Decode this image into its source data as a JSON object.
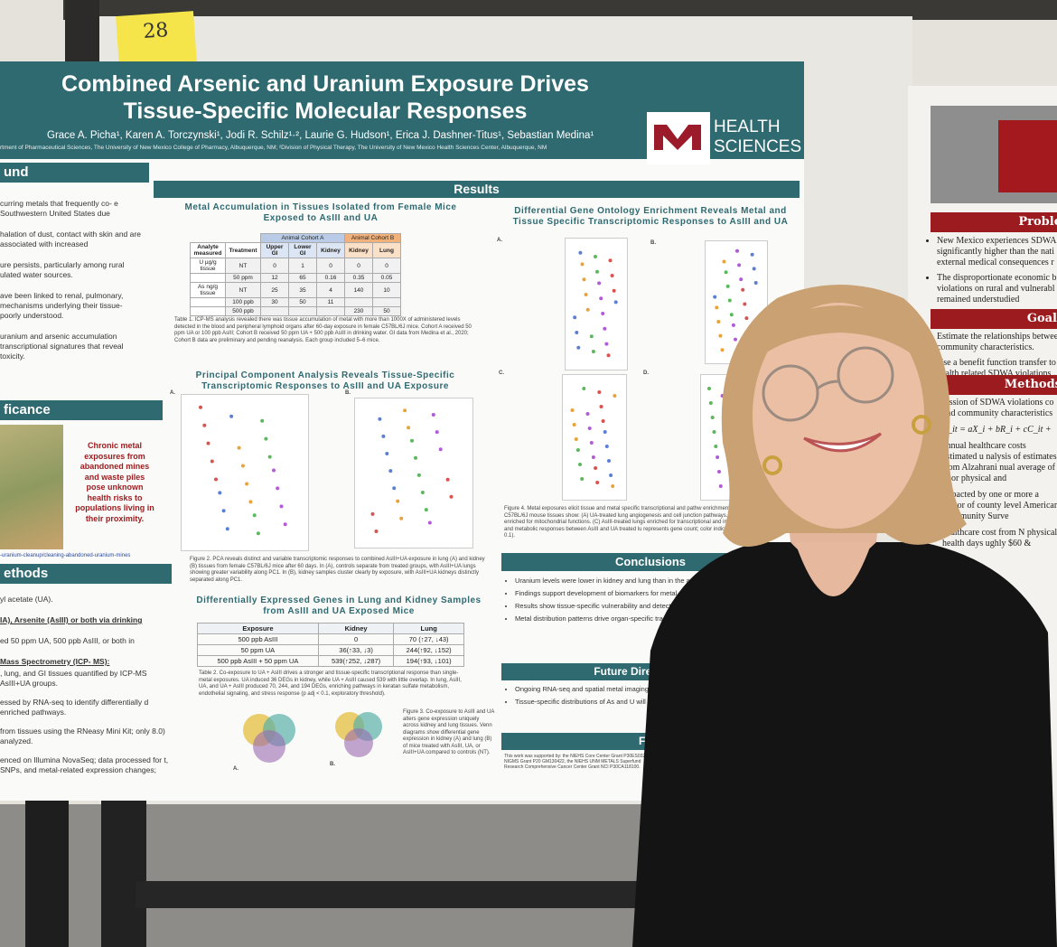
{
  "sticky_note": "28",
  "poster": {
    "title_lines": [
      "Combined Arsenic and Uranium Exposure Drives",
      "Tissue-Specific Molecular Responses"
    ],
    "authors": "Grace A. Picha¹, Karen A. Torczynski¹, Jodi R. Schilz¹·², Laurie G. Hudson¹, Erica J. Dashner-Titus¹, Sebastian Medina¹",
    "affiliation": "rtment of Pharmaceutical Sciences, The University of New Mexico College of Pharmacy, Albuquerque, NM; ²Division of Physical Therapy, The University of New Mexico Health Sciences Center, Albuquerque, NM",
    "logo_lines": [
      "HEALTH",
      "SCIENCES"
    ],
    "background": {
      "header": "und",
      "paragraphs": [
        "curring metals that frequently co- e Southwestern United States due",
        "halation of dust, contact with skin and are associated with increased",
        "ure persists, particularly among rural ulated water sources.",
        "ave been linked to renal, pulmonary, mechanisms underlying their tissue- poorly understood.",
        "uranium and arsenic accumulation transcriptional signatures that reveal toxicity."
      ]
    },
    "significance": {
      "header": "ficance",
      "callout": "Chronic metal exposures from abandoned mines and waste piles pose unknown health risks to populations living in their proximity.",
      "link": "-uranium-cleanup/cleaning-abandoned-uranium-mines"
    },
    "methods": {
      "header": "ethods",
      "paragraphs": [
        "yl acetate (UA).",
        "IA), Arsenite (AsIII) or both via drinking",
        "ed 50 ppm UA, 500 ppb AsIII, or both in",
        "Mass Spectrometry (ICP- MS):",
        ", lung, and GI tissues quantified by ICP-MS AsIII+UA groups.",
        "essed by RNA-seq to identify differentially d enriched pathways.",
        "from tissues using the RNeasy Mini Kit; only 8.0) analyzed.",
        "enced on Illumina NovaSeq; data processed for t, SNPs, and metal-related expression changes;"
      ]
    },
    "results_header": "Results",
    "fig1": {
      "title": "Metal Accumulation in Tissues Isolated from Female Mice Exposed to AsIII and UA",
      "cohorts": [
        "Animal Cohort A",
        "Animal Cohort B"
      ],
      "columns": [
        "Analyte measured",
        "Treatment",
        "Upper GI",
        "Lower GI",
        "Kidney",
        "Kidney",
        "Lung"
      ],
      "rows": [
        [
          "U µg/g tissue",
          "NT",
          "0",
          "1",
          "0",
          "0",
          "0"
        ],
        [
          null,
          "50 ppm",
          "12",
          "65",
          "0.16",
          "0.35",
          "0.05"
        ],
        [
          "As ng/g tissue",
          "NT",
          "25",
          "35",
          "4",
          "140",
          "10"
        ],
        [
          null,
          "100 ppb",
          "30",
          "50",
          "11",
          null,
          null
        ],
        [
          null,
          "500 ppb",
          null,
          null,
          null,
          "230",
          "50"
        ]
      ],
      "caption": "Table 1. ICP-MS analysis revealed there was tissue accumulation of metal with more than 1000X of administered levels detected in the blood and peripheral lymphoid organs after 60-day exposure in female C57BL/6J mice. Cohort A received 50 ppm UA or 100 ppb AsIII; Cohort B received 50 ppm UA + 500 ppb AsIII in drinking water. GI data from Medina et al., 2020; Cohort B data are preliminary and pending reanalysis. Each group included 5–6 mice."
    },
    "fig2": {
      "title": "Principal Component Analysis Reveals Tissue-Specific Transcriptomic Responses to AsIII and UA Exposure",
      "panels": [
        "A.",
        "B."
      ],
      "caption": "Figure 2. PCA reveals distinct and variable transcriptomic responses to combined AsIII+UA exposure in lung (A) and kidney (B) tissues from female C57BL/6J mice after 60 days. In (A), controls separate from treated groups, with AsIII+UA lungs showing greater variability along PC1. In (B), kidney samples cluster clearly by exposure, with AsIII+UA kidneys distinctly separated along PC1."
    },
    "fig3": {
      "title": "Differentially Expressed Genes in Lung and Kidney Samples from AsIII and UA Exposed Mice",
      "columns": [
        "Exposure",
        "Kidney",
        "Lung"
      ],
      "rows": [
        [
          "500 ppb AsIII",
          "0",
          "70 (↑27, ↓43)"
        ],
        [
          "50 ppm UA",
          "36(↑33, ↓3)",
          "244(↑92, ↓152)"
        ],
        [
          "500 ppb AsIII + 50 ppm UA",
          "539(↑252, ↓287)",
          "194(↑93, ↓101)"
        ]
      ],
      "caption": "Table 2. Co-exposure to UA + AsIII drives a stronger and tissue-specific transcriptional response than single-metal exposures. UA induced 36 DEGs in kidney, while UA + AsIII caused 539 with little overlap. In lung, AsIII, UA, and UA + AsIII produced 70, 244, and 194 DEGs, enriching pathways in keratan sulfate metabolism, endothelial signaling, and stress response (p adj < 0.1, exploratory threshold).",
      "venn_caption": "Figure 3. Co-exposure to AsIII and UA alters gene expression uniquely across kidney and lung tissues. Venn diagrams show differential gene expression in kidney (A) and lung (B) of mice treated with AsIII, UA, or AsIII+UA compared to controls (NT).",
      "panels": [
        "A.",
        "B."
      ]
    },
    "fig4": {
      "title": "Differential Gene Ontology Enrichment Reveals Metal and Tissue Specific Transcriptomic Responses to AsIII and UA",
      "panels": [
        "A.",
        "B.",
        "C.",
        "D."
      ],
      "caption": "Figure 4. Metal exposures elicit tissue and metal specific transcriptional and pathw enrichment analyses of female C57BL/6J mouse tissues show: (A) UA-treated lung angiogenesis and cell junction pathways. (B) UA-treated kidneys enriched for mitochondrial functions. (C) AsIII-treated lungs enriched for transcriptional and imm (D) distinct transcriptional and metabolic responses between AsIII and UA treated lu represents gene count; color indicates significance (p adj. < 0.1)."
    },
    "conclusions": {
      "header": "Conclusions",
      "bullets": [
        "Uranium levels were lower in kidney and lung than in the accumulated primarily in the kidney.",
        "Findings support development of biomarkers for metal an",
        "Results show tissue-specific vulnerability and detectabl RNAseq.",
        "Metal distribution patterns drive organ-specific tra sensitivity under co-exposure."
      ]
    },
    "future": {
      "header": "Future Direction",
      "bullets": [
        "Ongoing RNA-seq and spatial metal imaging wi drivers of co-exposure toxicity.",
        "Tissue-specific distributions of As and U will be MS, ICP-MS, and HPLC-ICP-MS."
      ]
    },
    "funding": {
      "header": "Fundin",
      "text": "This work was supported by: the NIEHS Core Center Grant P30ES032755, NIGMS Grant P20 GM130422, the NIEHS UNM METALS Superfund Research Comprehensive Cancer Center Grant NCI P30CA118100."
    }
  },
  "side_poster": {
    "headers": [
      "Proble",
      "Goal",
      "Methods"
    ],
    "problem_bullets": [
      "New Mexico experiences SDWA significantly higher than the nati external medical consequences r",
      "The disproportionate economic b violations on rural and vulnerabl has remained understudied"
    ],
    "goal_bullets": [
      "Estimate the relationships betwee community characteristics.",
      "Use a benefit function transfer to health related SDWA violations ."
    ],
    "methods_lines": [
      "ression of SDWA violations co and community characteristics",
      "V_it = aX_i + bR_i + cC_it +",
      "annual healthcare costs estimated u nalysis of estimates from Alzahrani nual average of poor physical and",
      "impacted by one or more a vector of county level American Community Surve",
      "healthcare cost from N physical health days ughly $60 &"
    ]
  }
}
